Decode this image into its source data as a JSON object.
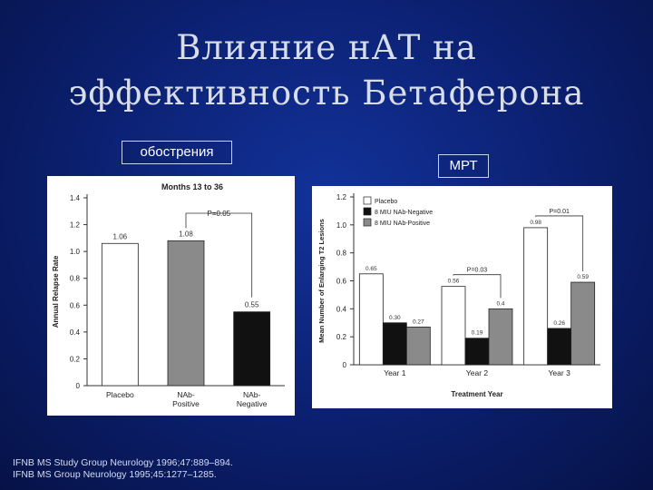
{
  "slide": {
    "title_line1": "Влияние нАТ на",
    "title_line2": "эффективность Бетаферона",
    "label_left": "обострения",
    "label_right": "МРТ",
    "references": [
      "IFNB MS Study Group Neurology 1996;47:889–894.",
      "IFNB MS Group Neurology 1995;45:1277–1285."
    ]
  },
  "chart_data": [
    {
      "type": "bar",
      "title": "Months 13 to 36",
      "ylabel": "Annual Relapse Rate",
      "xlabel": "",
      "ylim": [
        0,
        1.4
      ],
      "yticks": [
        "0",
        "0.2",
        "0.4",
        "0.6",
        "0.8",
        "1.0",
        "1.2",
        "1.4"
      ],
      "categories": [
        "Placebo",
        "NAb-Positive",
        "NAb-Negative"
      ],
      "category_labels": [
        [
          "Placebo"
        ],
        [
          "NAb-",
          "Positive"
        ],
        [
          "NAb-",
          "Negative"
        ]
      ],
      "values": [
        1.06,
        1.08,
        0.55
      ],
      "value_labels": [
        "1.06",
        "1.08",
        "0.55"
      ],
      "fills": [
        "#ffffff",
        "#8a8a8a",
        "#111111"
      ],
      "annotation": "P=0.05",
      "legend": "none",
      "grid": false
    },
    {
      "type": "bar",
      "title": "",
      "ylabel": "Mean Number of Enlarging T2 Lesions",
      "xlabel": "Treatment Year",
      "ylim": [
        0,
        1.2
      ],
      "yticks": [
        "0",
        "0.2",
        "0.4",
        "0.6",
        "0.8",
        "1.0",
        "1.2"
      ],
      "categories": [
        "Year 1",
        "Year 2",
        "Year 3"
      ],
      "series": [
        {
          "name": "Placebo",
          "values": [
            0.65,
            0.56,
            0.98
          ],
          "labels": [
            "0.65",
            "0.56",
            "0.98"
          ],
          "color": "#ffffff"
        },
        {
          "name": "8 MIU NAb-Negative",
          "values": [
            0.3,
            0.19,
            0.26
          ],
          "labels": [
            "0.30",
            "0.19",
            "0.26"
          ],
          "color": "#111111"
        },
        {
          "name": "8 MIU NAb-Positive",
          "values": [
            0.27,
            0.4,
            0.59
          ],
          "labels": [
            "0.27",
            "0.4",
            "0.59"
          ],
          "color": "#8a8a8a"
        }
      ],
      "annotations": [
        {
          "group": 1,
          "text": "P=0.03"
        },
        {
          "group": 2,
          "text": "P=0.01"
        }
      ],
      "legend": "top-left",
      "grid": false
    }
  ]
}
